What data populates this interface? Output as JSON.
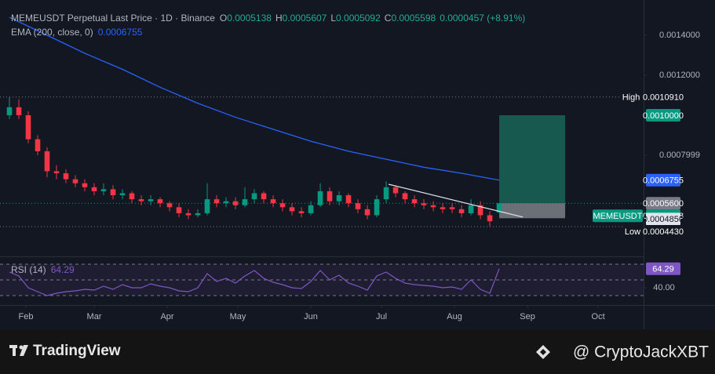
{
  "chart_data": {
    "type": "candlestick",
    "title": "MEMEUSDT Perpetual Last Price · 1D · Binance",
    "ohlc_labels": [
      "O",
      "H",
      "L",
      "C"
    ],
    "ohlc_values": [
      0.0005138,
      0.0005607,
      0.0005092,
      0.0005598
    ],
    "change_label": "0.0000457 (+8.91%)",
    "ema_label": "EMA (200, close, 0)",
    "ema_value": 0.0006755,
    "up_color": "#089981",
    "down_color": "#f23645",
    "candles": {
      "x": [
        25,
        29,
        33,
        37,
        41,
        45,
        49,
        53,
        57,
        61,
        65,
        69,
        73,
        77,
        81,
        85,
        89,
        93,
        97,
        101,
        105,
        109,
        113,
        117,
        121,
        125,
        129,
        133,
        137,
        141,
        145,
        149,
        153,
        157,
        161,
        165,
        169,
        173,
        177,
        181,
        185,
        189,
        193,
        197,
        201,
        205,
        209,
        213,
        217,
        221,
        225,
        229,
        233
      ],
      "open": [
        0.001,
        0.00104,
        0.001,
        0.00088,
        0.00082,
        0.00072,
        0.00071,
        0.00068,
        0.00066,
        0.00064,
        0.00062,
        0.00063,
        0.0006,
        0.00061,
        0.00058,
        0.00057,
        0.00058,
        0.00056,
        0.00054,
        0.00051,
        0.0005,
        0.00051,
        0.00058,
        0.00056,
        0.00057,
        0.00055,
        0.00058,
        0.00061,
        0.00058,
        0.00056,
        0.00054,
        0.00052,
        0.00051,
        0.00055,
        0.00062,
        0.00057,
        0.0006,
        0.00056,
        0.00053,
        0.0005,
        0.00058,
        0.00064,
        0.00061,
        0.00058,
        0.00056,
        0.00055,
        0.00054,
        0.00054,
        0.00053,
        0.00051,
        0.00055,
        0.0005,
        0.0005138
      ],
      "high": [
        0.001091,
        0.00108,
        0.00102,
        0.0009,
        0.00084,
        0.00075,
        0.00073,
        0.0007,
        0.00068,
        0.00066,
        0.00066,
        0.00065,
        0.00063,
        0.00062,
        0.0006,
        0.0006,
        0.00059,
        0.00057,
        0.00056,
        0.00053,
        0.00053,
        0.00066,
        0.0006,
        0.00059,
        0.00059,
        0.00064,
        0.00063,
        0.00062,
        0.0006,
        0.00058,
        0.00056,
        0.00054,
        0.00057,
        0.00066,
        0.00064,
        0.00062,
        0.00061,
        0.00058,
        0.00055,
        0.0006,
        0.00067,
        0.00065,
        0.00062,
        0.0006,
        0.00058,
        0.00057,
        0.00056,
        0.00056,
        0.00055,
        0.00058,
        0.00057,
        0.00052,
        0.0005607
      ],
      "low": [
        0.00098,
        0.00098,
        0.00086,
        0.0008,
        0.00069,
        0.00068,
        0.00066,
        0.00064,
        0.00062,
        0.0006,
        0.0006,
        0.00058,
        0.00058,
        0.00056,
        0.00055,
        0.00055,
        0.00054,
        0.00052,
        0.00049,
        0.00048,
        0.00049,
        0.0005,
        0.00054,
        0.00054,
        0.00053,
        0.00054,
        0.00056,
        0.00056,
        0.00054,
        0.00052,
        0.0005,
        0.00049,
        0.0005,
        0.00054,
        0.00055,
        0.00055,
        0.00054,
        0.00051,
        0.00048,
        0.00049,
        0.00056,
        0.00059,
        0.00056,
        0.00054,
        0.00053,
        0.00052,
        0.00051,
        0.00051,
        0.00049,
        0.0005,
        0.00048,
        0.000443,
        0.0005092
      ],
      "close": [
        0.00104,
        0.001,
        0.00088,
        0.00082,
        0.00072,
        0.00071,
        0.00068,
        0.00066,
        0.00064,
        0.00062,
        0.00063,
        0.0006,
        0.00061,
        0.00058,
        0.00057,
        0.00058,
        0.00056,
        0.00054,
        0.00051,
        0.0005,
        0.00051,
        0.00058,
        0.00056,
        0.00057,
        0.00055,
        0.00058,
        0.00061,
        0.00058,
        0.00056,
        0.00054,
        0.00052,
        0.00051,
        0.00055,
        0.00062,
        0.00057,
        0.0006,
        0.00056,
        0.00053,
        0.0005,
        0.00058,
        0.00064,
        0.00061,
        0.00058,
        0.00056,
        0.00055,
        0.00054,
        0.00053,
        0.00053,
        0.00051,
        0.00055,
        0.0005,
        0.00047,
        0.0005598
      ]
    },
    "ema": {
      "color": "#2962ff",
      "x": [
        25,
        41,
        57,
        73,
        89,
        105,
        121,
        137,
        153,
        169,
        185,
        201,
        217,
        233
      ],
      "values": [
        0.00149,
        0.0014,
        0.00131,
        0.00123,
        0.00114,
        0.00106,
        0.00099,
        0.00093,
        0.00087,
        0.00082,
        0.00078,
        0.00074,
        0.00071,
        0.0006755
      ]
    },
    "trendline": {
      "x": [
        186,
        243
      ],
      "values": [
        0.000655,
        0.000491
      ]
    },
    "position": {
      "x": [
        233,
        261
      ],
      "target": {
        "value": 0.001,
        "label": "0.0010000"
      },
      "entry": {
        "value": 0.00056,
        "label": "0.0005600"
      },
      "stop": {
        "value": 0.000485,
        "label": "0.0004850"
      }
    },
    "high": {
      "tag": "High",
      "value": 0.001091,
      "value_label": "0.0010910"
    },
    "low": {
      "tag": "Low",
      "value": 0.000443,
      "value_label": "0.0004430"
    },
    "last": {
      "tag": "MEMEUSDT",
      "value": 0.0005598
    },
    "xlim": [
      21,
      294.3
    ],
    "xticks": [
      {
        "value": 32,
        "label": "Feb"
      },
      {
        "value": 61,
        "label": "Mar"
      },
      {
        "value": 92,
        "label": "Apr"
      },
      {
        "value": 122,
        "label": "May"
      },
      {
        "value": 153,
        "label": "Jun"
      },
      {
        "value": 183,
        "label": "Jul"
      },
      {
        "value": 214,
        "label": "Aug"
      },
      {
        "value": 245,
        "label": "Sep"
      },
      {
        "value": 275,
        "label": "Oct"
      }
    ],
    "ylim": [
      0.000302,
      0.0015765
    ],
    "yticks": [
      {
        "value": 0.0014,
        "label": "0.0014000"
      },
      {
        "value": 0.0012,
        "label": "0.0012000"
      },
      {
        "value": 0.0007999,
        "label": "0.0007999"
      }
    ],
    "rsi": {
      "label": "RSI (14)",
      "color": "#7e57c2",
      "ylim": [
        20,
        80
      ],
      "yticks": [
        {
          "value": 40,
          "label": "40.00"
        }
      ],
      "levels": [
        30,
        50,
        70
      ],
      "values": [
        60,
        55,
        40,
        35,
        30,
        33,
        35,
        36,
        38,
        37,
        42,
        38,
        44,
        40,
        40,
        45,
        42,
        40,
        36,
        35,
        40,
        58,
        48,
        52,
        46,
        55,
        62,
        52,
        47,
        44,
        40,
        39,
        48,
        62,
        50,
        56,
        46,
        42,
        37,
        55,
        60,
        52,
        46,
        44,
        43,
        42,
        40,
        41,
        38,
        50,
        38,
        33,
        64.29
      ]
    },
    "footer": {
      "brand": "TradingView",
      "watermark": "@ CryptoJackXBT"
    }
  }
}
